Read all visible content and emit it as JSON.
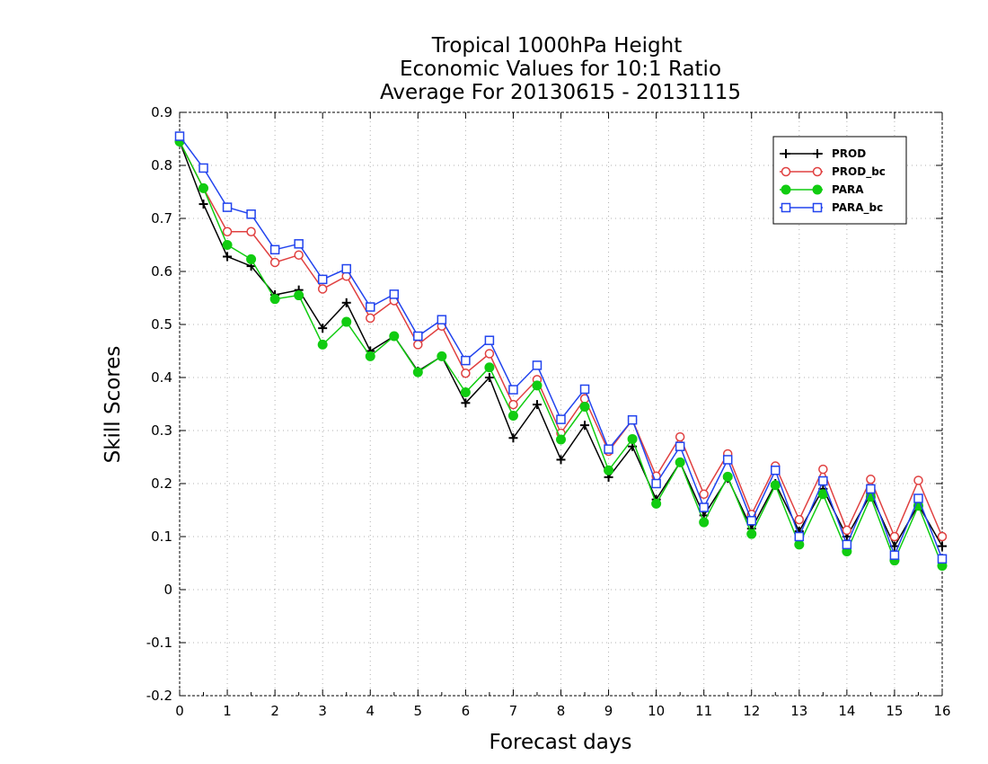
{
  "chart_data": {
    "type": "line",
    "title": [
      "Tropical 1000hPa Height",
      "Economic Values for 10:1 Ratio",
      "Average For 20130615 - 20131115"
    ],
    "xlabel": "Forecast days",
    "ylabel": "Skill Scores",
    "xlim": [
      0,
      16
    ],
    "ylim": [
      -0.2,
      0.9
    ],
    "xticks": [
      "0",
      "1",
      "2",
      "3",
      "4",
      "5",
      "6",
      "7",
      "8",
      "9",
      "10",
      "11",
      "12",
      "13",
      "14",
      "15",
      "16"
    ],
    "yticks": [
      "-0.2",
      "-0.1",
      "0",
      "0.1",
      "0.2",
      "0.3",
      "0.4",
      "0.5",
      "0.6",
      "0.7",
      "0.8",
      "0.9"
    ],
    "grid": true,
    "legend_position": "top-right",
    "x": [
      0,
      0.5,
      1,
      1.5,
      2,
      2.5,
      3,
      3.5,
      4,
      4.5,
      5,
      5.5,
      6,
      6.5,
      7,
      7.5,
      8,
      8.5,
      9,
      9.5,
      10,
      10.5,
      11,
      11.5,
      12,
      12.5,
      13,
      13.5,
      14,
      14.5,
      15,
      15.5,
      16
    ],
    "series": [
      {
        "name": "PROD",
        "color": "#000000",
        "marker": "plus",
        "values": [
          0.845,
          0.727,
          0.628,
          0.61,
          0.556,
          0.565,
          0.493,
          0.541,
          0.45,
          0.478,
          0.412,
          0.44,
          0.352,
          0.4,
          0.286,
          0.349,
          0.245,
          0.31,
          0.212,
          0.27,
          0.17,
          0.24,
          0.14,
          0.21,
          0.115,
          0.2,
          0.11,
          0.19,
          0.1,
          0.18,
          0.082,
          0.16,
          0.082
        ]
      },
      {
        "name": "PROD_bc",
        "color": "#e04040",
        "marker": "circle-open",
        "values": [
          0.845,
          0.757,
          0.675,
          0.675,
          0.617,
          0.631,
          0.567,
          0.591,
          0.512,
          0.545,
          0.462,
          0.497,
          0.408,
          0.445,
          0.349,
          0.396,
          0.295,
          0.36,
          0.261,
          0.32,
          0.214,
          0.288,
          0.18,
          0.256,
          0.142,
          0.233,
          0.132,
          0.227,
          0.112,
          0.208,
          0.1,
          0.206,
          0.1
        ]
      },
      {
        "name": "PARA",
        "color": "#11cc11",
        "marker": "circle-filled",
        "values": [
          0.845,
          0.757,
          0.65,
          0.623,
          0.548,
          0.555,
          0.462,
          0.505,
          0.44,
          0.478,
          0.41,
          0.44,
          0.372,
          0.419,
          0.328,
          0.385,
          0.283,
          0.345,
          0.225,
          0.284,
          0.162,
          0.24,
          0.127,
          0.213,
          0.105,
          0.197,
          0.085,
          0.18,
          0.072,
          0.175,
          0.055,
          0.158,
          0.045
        ]
      },
      {
        "name": "PARA_bc",
        "color": "#2244ee",
        "marker": "square-open",
        "values": [
          0.855,
          0.795,
          0.721,
          0.708,
          0.641,
          0.652,
          0.585,
          0.605,
          0.533,
          0.557,
          0.478,
          0.509,
          0.432,
          0.47,
          0.377,
          0.423,
          0.321,
          0.378,
          0.265,
          0.32,
          0.2,
          0.27,
          0.155,
          0.245,
          0.13,
          0.225,
          0.1,
          0.205,
          0.085,
          0.19,
          0.065,
          0.172,
          0.058
        ]
      }
    ]
  }
}
